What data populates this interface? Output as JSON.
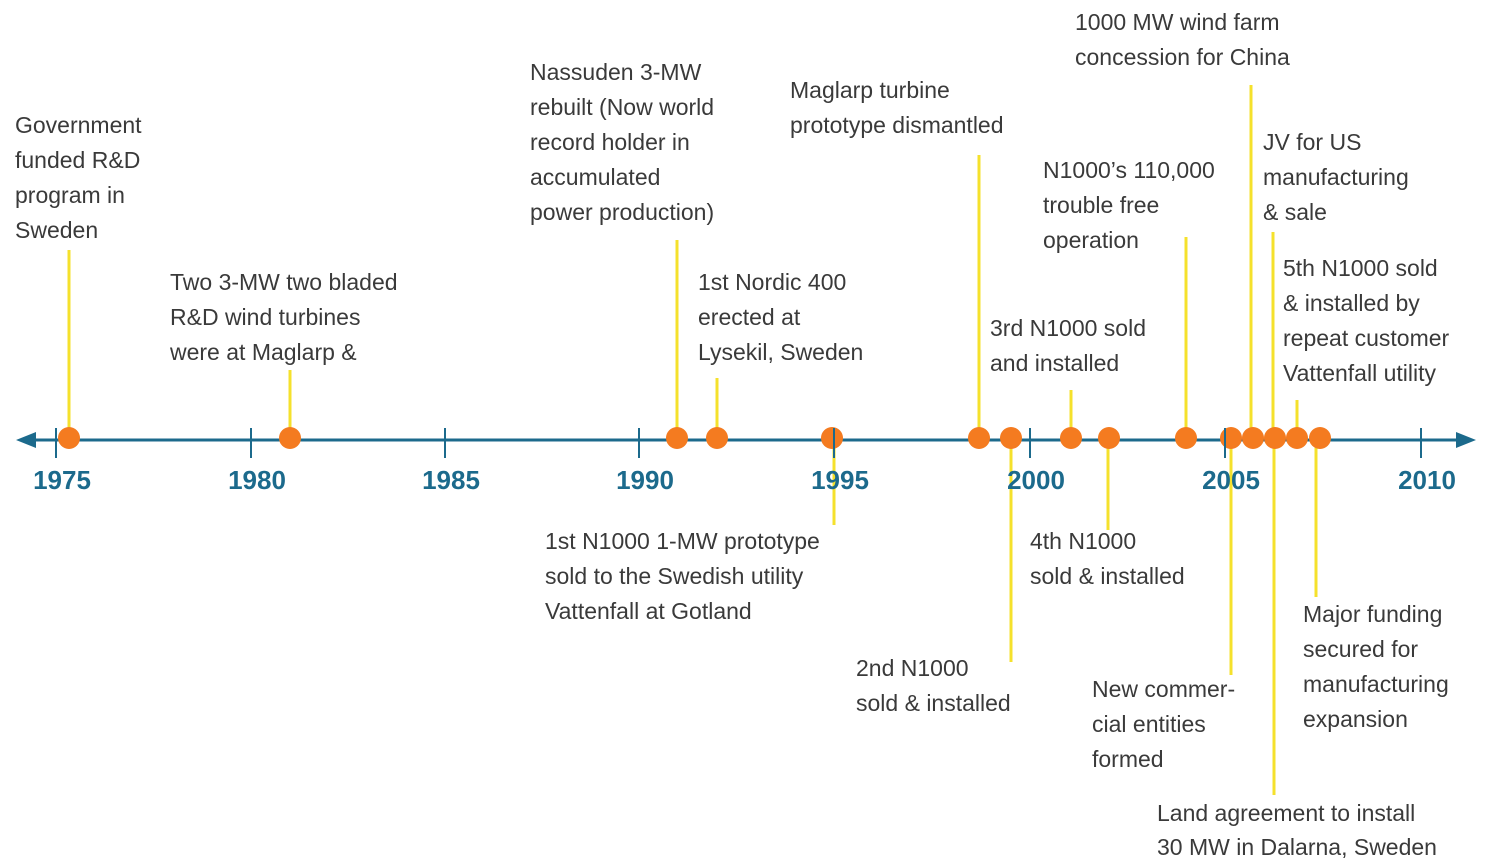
{
  "axis": {
    "years": [
      "1975",
      "1980",
      "1985",
      "1990",
      "1995",
      "2000",
      "2005",
      "2010"
    ]
  },
  "events": [
    {
      "lines": [
        "Government",
        "funded R&D",
        "program in",
        "Sweden"
      ]
    },
    {
      "lines": [
        "Two 3-MW two bladed",
        "R&D wind turbines",
        "were at Maglarp &"
      ]
    },
    {
      "lines": [
        "Nassuden 3-MW",
        "rebuilt (Now world",
        "record holder in",
        "accumulated",
        "power production)"
      ]
    },
    {
      "lines": [
        "1st Nordic 400",
        "erected at",
        "Lysekil, Sweden"
      ]
    },
    {
      "lines": [
        "Maglarp turbine",
        "prototype dismantled"
      ]
    },
    {
      "lines": [
        "N1000’s 110,000",
        "trouble free",
        "operation"
      ]
    },
    {
      "lines": [
        "3rd N1000 sold",
        "and installed"
      ]
    },
    {
      "lines": [
        "1000 MW wind farm",
        "concession for China"
      ]
    },
    {
      "lines": [
        "JV for US",
        "manufacturing",
        "& sale"
      ]
    },
    {
      "lines": [
        "5th N1000 sold",
        "& installed by",
        "repeat customer",
        "Vattenfall utility"
      ]
    },
    {
      "lines": [
        "1st N1000 1-MW prototype",
        "sold to the Swedish utility",
        "Vattenfall at  Gotland"
      ]
    },
    {
      "lines": [
        "2nd N1000",
        "sold & installed"
      ]
    },
    {
      "lines": [
        "4th N1000",
        "sold & installed"
      ]
    },
    {
      "lines": [
        "New commer-",
        "cial entities",
        "formed"
      ]
    },
    {
      "lines": [
        "Land agreement to install",
        "30 MW in Dalarna, Sweden"
      ]
    },
    {
      "lines": [
        "Major funding",
        "secured for",
        "manufacturing",
        "expansion"
      ]
    }
  ]
}
